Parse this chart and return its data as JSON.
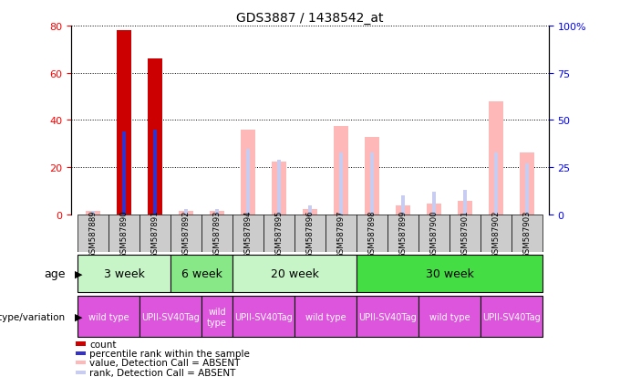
{
  "title": "GDS3887 / 1438542_at",
  "samples": [
    "GSM587889",
    "GSM587890",
    "GSM587891",
    "GSM587892",
    "GSM587893",
    "GSM587894",
    "GSM587895",
    "GSM587896",
    "GSM587897",
    "GSM587898",
    "GSM587899",
    "GSM587900",
    "GSM587901",
    "GSM587902",
    "GSM587903"
  ],
  "count_values": [
    0,
    78,
    66,
    0,
    0,
    0,
    0,
    0,
    0,
    0,
    0,
    0,
    0,
    0,
    0
  ],
  "percentile_values": [
    0,
    35,
    36,
    0,
    0,
    0,
    0,
    0,
    0,
    0,
    0,
    0,
    0,
    0,
    0
  ],
  "absent_value": [
    2,
    0,
    0,
    2,
    2,
    45,
    28,
    3,
    47,
    41,
    5,
    6,
    7,
    60,
    33
  ],
  "absent_rank": [
    2,
    0,
    0,
    3,
    3,
    35,
    29,
    5,
    33,
    33,
    10,
    12,
    13,
    33,
    27
  ],
  "ylim_left": [
    0,
    80
  ],
  "ylim_right": [
    0,
    100
  ],
  "yticks_left": [
    0,
    20,
    40,
    60,
    80
  ],
  "yticks_right": [
    0,
    25,
    50,
    75,
    100
  ],
  "yticklabels_right": [
    "0",
    "25",
    "50",
    "75",
    "100%"
  ],
  "age_groups": [
    {
      "label": "3 week",
      "start": 0,
      "end": 3,
      "color": "#c8f5c8"
    },
    {
      "label": "6 week",
      "start": 3,
      "end": 5,
      "color": "#88e888"
    },
    {
      "label": "20 week",
      "start": 5,
      "end": 9,
      "color": "#c8f5c8"
    },
    {
      "label": "30 week",
      "start": 9,
      "end": 15,
      "color": "#44dd44"
    }
  ],
  "genotype_groups": [
    {
      "label": "wild type",
      "start": 0,
      "end": 2,
      "color": "#dd55dd"
    },
    {
      "label": "UPII-SV40Tag",
      "start": 2,
      "end": 4,
      "color": "#dd55dd"
    },
    {
      "label": "wild\ntype",
      "start": 4,
      "end": 5,
      "color": "#dd55dd"
    },
    {
      "label": "UPII-SV40Tag",
      "start": 5,
      "end": 7,
      "color": "#dd55dd"
    },
    {
      "label": "wild type",
      "start": 7,
      "end": 9,
      "color": "#dd55dd"
    },
    {
      "label": "UPII-SV40Tag",
      "start": 9,
      "end": 11,
      "color": "#dd55dd"
    },
    {
      "label": "wild type",
      "start": 11,
      "end": 13,
      "color": "#dd55dd"
    },
    {
      "label": "UPII-SV40Tag",
      "start": 13,
      "end": 15,
      "color": "#dd55dd"
    }
  ],
  "color_count": "#cc0000",
  "color_percentile": "#3333cc",
  "color_absent_value": "#ffb8b8",
  "color_absent_rank": "#c8ccf0",
  "bg_color": "#ffffff",
  "grid_color": "#888888",
  "sample_box_color": "#cccccc"
}
